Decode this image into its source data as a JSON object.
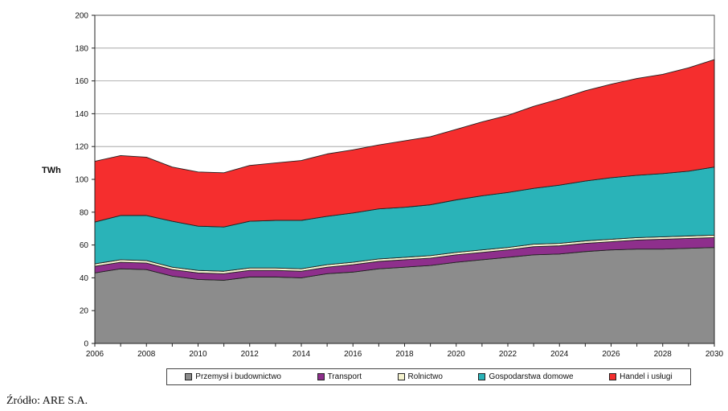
{
  "chart_data": {
    "type": "area",
    "stacked": true,
    "ylabel": "TWh",
    "ylim": [
      0,
      200
    ],
    "yticks": [
      0,
      20,
      40,
      60,
      80,
      100,
      120,
      140,
      160,
      180,
      200
    ],
    "xlim": [
      2006,
      2030
    ],
    "xticks": [
      2006,
      2008,
      2010,
      2012,
      2014,
      2016,
      2018,
      2020,
      2022,
      2024,
      2026,
      2028,
      2030
    ],
    "grid": "horizontal",
    "legend_position": "bottom",
    "x": [
      2006,
      2007,
      2008,
      2009,
      2010,
      2011,
      2012,
      2013,
      2014,
      2015,
      2016,
      2017,
      2018,
      2019,
      2020,
      2021,
      2022,
      2023,
      2024,
      2025,
      2026,
      2027,
      2028,
      2029,
      2030
    ],
    "series": [
      {
        "name": "Przemysł i budownictwo",
        "color": "#8c8c8c",
        "values": [
          43,
          45.5,
          45,
          41,
          39,
          38.5,
          40.5,
          40.5,
          40,
          42.5,
          43.5,
          45.5,
          46.5,
          47.5,
          49.5,
          51,
          52.5,
          54,
          54.5,
          56,
          57,
          57.5,
          57.5,
          58,
          58.5
        ]
      },
      {
        "name": "Transport",
        "color": "#8e2f8c",
        "values": [
          4,
          4,
          4,
          4,
          4,
          4,
          4,
          4,
          4,
          4,
          4.5,
          4.5,
          4.5,
          4.5,
          4.5,
          4.5,
          4.5,
          5,
          5,
          5,
          5,
          5.5,
          6,
          6,
          6
        ]
      },
      {
        "name": "Rolnictwo",
        "color": "#f5f3cf",
        "values": [
          1.5,
          1.5,
          1.5,
          1.5,
          1.5,
          1.5,
          1.5,
          1.5,
          1.5,
          1.5,
          1.5,
          1.5,
          1.5,
          1.5,
          1.5,
          1.5,
          1.5,
          1.5,
          1.5,
          1.5,
          1.5,
          1.5,
          1.5,
          1.5,
          1.5
        ]
      },
      {
        "name": "Gospodarstwa domowe",
        "color": "#2ab3b8",
        "values": [
          25.5,
          27,
          27.5,
          28,
          27,
          27,
          28.5,
          29,
          29.5,
          29.5,
          30,
          30.5,
          30.5,
          31,
          32,
          33,
          33.5,
          34,
          35.5,
          36.5,
          37.5,
          38,
          38.5,
          39.5,
          41.5
        ]
      },
      {
        "name": "Handel i usługi",
        "color": "#f52e2e",
        "values": [
          37,
          36.5,
          35.5,
          33,
          33,
          33,
          34,
          35,
          36.5,
          38,
          38.5,
          39,
          40.5,
          41.5,
          43,
          45,
          47,
          50,
          52.5,
          55,
          57,
          59,
          60.5,
          63,
          65.5
        ]
      }
    ]
  },
  "source_note": "Źródło: ARE S.A."
}
